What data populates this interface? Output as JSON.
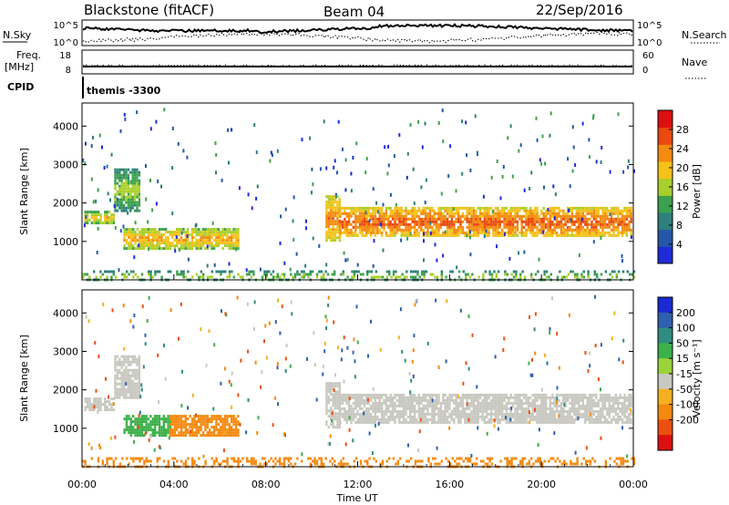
{
  "header": {
    "station": "Blackstone (fitACF)",
    "beam": "Beam 04",
    "date": "22/Sep/2016"
  },
  "top_panels": {
    "nsky_label": "N.Sky",
    "nsky_ticks": [
      "10^5",
      "10^0"
    ],
    "nsearch_label": "N.Search",
    "nsearch_ticks": [
      "10^5",
      "10^0"
    ],
    "freq_label_1": "Freq.",
    "freq_label_2": "[MHz]",
    "freq_ticks": [
      "18",
      "8"
    ],
    "nave_label": "Nave",
    "nave_ticks": [
      "60",
      "0"
    ],
    "cpid_label": "CPID",
    "cpid_text": "themis -3300"
  },
  "colors": {
    "power": [
      "#1f2bd6",
      "#2457a8",
      "#2e7f7d",
      "#3ca14e",
      "#a9cf2c",
      "#f4c21a",
      "#f48a10",
      "#ea4a10",
      "#dc1010"
    ],
    "velocity": [
      "#1a2ad0",
      "#2f5fb0",
      "#2e8c80",
      "#3cb04a",
      "#9ad33a",
      "#c8c8c0",
      "#f4b020",
      "#f48a10",
      "#ea5010",
      "#dc1010"
    ]
  },
  "chart_data": [
    {
      "type": "heatmap",
      "quantity": "Power",
      "xlabel": "",
      "ylabel": "Slant Range [km]",
      "colorbar_label": "Power [dB]",
      "colorbar_ticks": [
        "4",
        "8",
        "12",
        "16",
        "20",
        "24",
        "28"
      ],
      "colorbar_range": [
        0,
        32
      ],
      "ylim": [
        0,
        4600
      ],
      "xlim": [
        0,
        24
      ],
      "y_ticks": [
        "1000",
        "2000",
        "3000",
        "4000"
      ],
      "y_tick_values": [
        1000,
        2000,
        3000,
        4000
      ],
      "regions": [
        {
          "t0": 0.1,
          "t1": 1.4,
          "r0": 1500,
          "r1": 1800,
          "value": 14
        },
        {
          "t0": 1.4,
          "t1": 2.5,
          "r0": 1800,
          "r1": 2900,
          "value": 11
        },
        {
          "t0": 1.8,
          "t1": 6.8,
          "r0": 850,
          "r1": 1350,
          "value": 16
        },
        {
          "t0": 10.6,
          "t1": 11.2,
          "r0": 1000,
          "r1": 2200,
          "value": 18
        },
        {
          "t0": 11.2,
          "t1": 23.9,
          "r0": 1150,
          "r1": 1900,
          "value": 20
        },
        {
          "t0": 0.0,
          "t1": 24.0,
          "r0": 0,
          "r1": 250,
          "value": 10
        }
      ]
    },
    {
      "type": "heatmap",
      "quantity": "Velocity",
      "xlabel": "Time UT",
      "ylabel": "Slant Range [km]",
      "colorbar_label": "Velocity [m s⁻¹]",
      "colorbar_ticks": [
        "200",
        "100",
        "50",
        "15",
        "-15",
        "-50",
        "-100",
        "-200"
      ],
      "colorbar_range": [
        -250,
        250
      ],
      "ylim": [
        0,
        4600
      ],
      "xlim": [
        0,
        24
      ],
      "x_ticks": [
        "00:00",
        "04:00",
        "08:00",
        "12:00",
        "16:00",
        "20:00",
        "00:00"
      ],
      "x_tick_values": [
        0,
        4,
        8,
        12,
        16,
        20,
        24
      ],
      "y_ticks": [
        "1000",
        "2000",
        "3000",
        "4000"
      ],
      "y_tick_values": [
        1000,
        2000,
        3000,
        4000
      ],
      "regions": [
        {
          "t0": 0.1,
          "t1": 1.4,
          "r0": 1500,
          "r1": 1800,
          "value": 0
        },
        {
          "t0": 1.4,
          "t1": 2.5,
          "r0": 1800,
          "r1": 2900,
          "value": 0
        },
        {
          "t0": 1.8,
          "t1": 3.8,
          "r0": 850,
          "r1": 1350,
          "value": 40
        },
        {
          "t0": 3.8,
          "t1": 6.8,
          "r0": 850,
          "r1": 1350,
          "value": -60
        },
        {
          "t0": 10.6,
          "t1": 11.2,
          "r0": 1000,
          "r1": 2200,
          "value": 0
        },
        {
          "t0": 11.2,
          "t1": 23.9,
          "r0": 1150,
          "r1": 1900,
          "value": 0
        },
        {
          "t0": 0.0,
          "t1": 24.0,
          "r0": 0,
          "r1": 250,
          "value": -60
        }
      ]
    }
  ]
}
